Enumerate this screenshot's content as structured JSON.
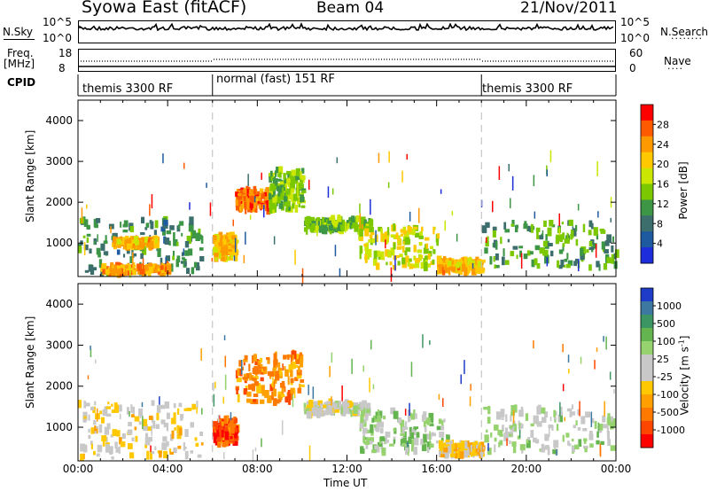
{
  "header": {
    "station": "Syowa East (fitACF)",
    "beam": "Beam 04",
    "date": "21/Nov/2011"
  },
  "top_panels": {
    "nsky_label": "N.Sky",
    "nsky_ticks": [
      "10^5",
      "10^0"
    ],
    "nsearch_label": "N.Search",
    "nsearch_ticks": [
      "10^5",
      "10^0"
    ],
    "freq_label_line1": "Freq.",
    "freq_label_line2": "[MHz]",
    "freq_ticks": [
      "18",
      "8"
    ],
    "nave_label": "Nave",
    "nave_ticks": [
      "60",
      "0"
    ],
    "cpid_label": "CPID",
    "modes": [
      {
        "label": "themis 3300 RF",
        "start_h": 0
      },
      {
        "label": "normal (fast) 151 RF",
        "start_h": 6
      },
      {
        "label": "themis 3300 RF",
        "start_h": 18
      }
    ]
  },
  "time_axis": {
    "title": "Time UT",
    "ticks": [
      "00:00",
      "04:00",
      "08:00",
      "12:00",
      "16:00",
      "20:00",
      "00:00"
    ]
  },
  "power_colorbar": {
    "title": "Power [dB]",
    "ticks": [
      "28",
      "24",
      "20",
      "16",
      "12",
      "8",
      "4"
    ],
    "colors": [
      "#ff0000",
      "#ff5a00",
      "#ff9900",
      "#ffc800",
      "#cbe600",
      "#7cc800",
      "#3c9646",
      "#3c6e6e",
      "#1e5aa0",
      "#1e2ddc"
    ]
  },
  "velocity_colorbar": {
    "title": "Velocity [m s^-1]",
    "ticks": [
      "1000",
      "500",
      "100",
      "25",
      "-25",
      "-100",
      "-500",
      "-1000"
    ],
    "colors": [
      "#1e3cc8",
      "#3c78a0",
      "#3c9664",
      "#64b450",
      "#96d26e",
      "#c8c8c8",
      "#c8c8c8",
      "#ffc800",
      "#ffa000",
      "#ff7800",
      "#ff4600",
      "#ff0000"
    ]
  },
  "chart_data": [
    {
      "type": "heatmap",
      "title": "Beam 04",
      "quantity": "Power",
      "xlabel": "Time UT",
      "ylabel": "Slant Range [km]",
      "xlim_hours": [
        0,
        24
      ],
      "ylim_km": [
        180,
        4500
      ],
      "yticks": [
        "1000",
        "2000",
        "3000",
        "4000"
      ],
      "colorbar_label": "Power [dB]",
      "colorbar_range": [
        0,
        32
      ],
      "grid": false,
      "echo_regions": [
        {
          "t": [
            0.0,
            5.5
          ],
          "r": [
            250,
            1600
          ],
          "level": 10
        },
        {
          "t": [
            1.0,
            4.0
          ],
          "r": [
            250,
            450
          ],
          "level": 24
        },
        {
          "t": [
            1.5,
            3.5
          ],
          "r": [
            900,
            1100
          ],
          "level": 22
        },
        {
          "t": [
            6.0,
            7.0
          ],
          "r": [
            600,
            1200
          ],
          "level": 22
        },
        {
          "t": [
            7.0,
            8.5
          ],
          "r": [
            1800,
            2300
          ],
          "level": 26
        },
        {
          "t": [
            8.5,
            10.0
          ],
          "r": [
            1800,
            2800
          ],
          "level": 14
        },
        {
          "t": [
            10.0,
            13.0
          ],
          "r": [
            1300,
            1600
          ],
          "level": 14
        },
        {
          "t": [
            12.5,
            16.0
          ],
          "r": [
            400,
            1400
          ],
          "level": 18
        },
        {
          "t": [
            16.0,
            18.0
          ],
          "r": [
            300,
            600
          ],
          "level": 22
        },
        {
          "t": [
            18.0,
            24.0
          ],
          "r": [
            400,
            1500
          ],
          "level": 12
        }
      ]
    },
    {
      "type": "heatmap",
      "quantity": "Velocity",
      "xlabel": "Time UT",
      "ylabel": "Slant Range [km]",
      "xlim_hours": [
        0,
        24
      ],
      "ylim_km": [
        180,
        4500
      ],
      "yticks": [
        "1000",
        "2000",
        "3000",
        "4000"
      ],
      "colorbar_label": "Velocity [m s^-1]",
      "colorbar_range": [
        -1000,
        1000
      ],
      "grid": false,
      "echo_regions": [
        {
          "t": [
            0.0,
            5.5
          ],
          "r": [
            250,
            1600
          ],
          "level": -150
        },
        {
          "t": [
            6.0,
            7.0
          ],
          "r": [
            600,
            1200
          ],
          "level": -700
        },
        {
          "t": [
            7.0,
            10.0
          ],
          "r": [
            1600,
            2800
          ],
          "level": -500
        },
        {
          "t": [
            10.0,
            13.0
          ],
          "r": [
            1300,
            1600
          ],
          "level": 0
        },
        {
          "t": [
            12.5,
            16.5
          ],
          "r": [
            400,
            1400
          ],
          "level": 250
        },
        {
          "t": [
            16.0,
            18.0
          ],
          "r": [
            300,
            600
          ],
          "level": -200
        },
        {
          "t": [
            18.0,
            24.0
          ],
          "r": [
            400,
            1500
          ],
          "level": 120
        }
      ]
    }
  ]
}
